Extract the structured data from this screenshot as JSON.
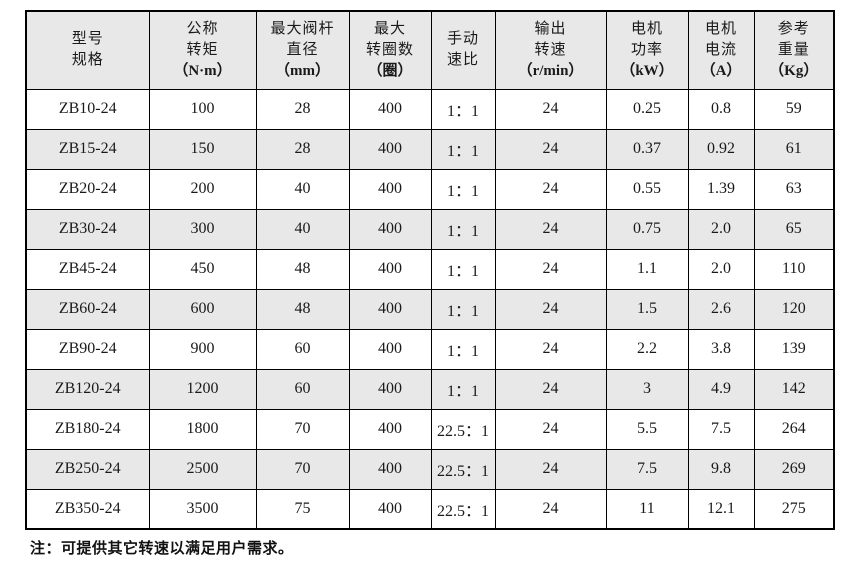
{
  "colors": {
    "page_bg": "#ffffff",
    "header_bg": "#e8e8e8",
    "stripe_bg": "#e8e8e8",
    "row_bg": "#ffffff",
    "border": "#000000"
  },
  "table": {
    "headers": [
      {
        "line1": "型号",
        "line2": "规格",
        "unit": ""
      },
      {
        "line1": "公称",
        "line2": "转矩",
        "unit": "（N·m）"
      },
      {
        "line1": "最大阀杆",
        "line2": "直径",
        "unit": "（mm）"
      },
      {
        "line1": "最大",
        "line2": "转圈数",
        "unit": "（圈）"
      },
      {
        "line1": "手动",
        "line2": "速比",
        "unit": ""
      },
      {
        "line1": "输出",
        "line2": "转速",
        "unit": "（r/min）"
      },
      {
        "line1": "电机",
        "line2": "功率",
        "unit": "（kW）"
      },
      {
        "line1": "电机",
        "line2": "电流",
        "unit": "（A）"
      },
      {
        "line1": "参考",
        "line2": "重量",
        "unit": "（Kg）"
      }
    ],
    "rows": [
      [
        "ZB10-24",
        "100",
        "28",
        "400",
        "1：1",
        "24",
        "0.25",
        "0.8",
        "59"
      ],
      [
        "ZB15-24",
        "150",
        "28",
        "400",
        "1：1",
        "24",
        "0.37",
        "0.92",
        "61"
      ],
      [
        "ZB20-24",
        "200",
        "40",
        "400",
        "1：1",
        "24",
        "0.55",
        "1.39",
        "63"
      ],
      [
        "ZB30-24",
        "300",
        "40",
        "400",
        "1：1",
        "24",
        "0.75",
        "2.0",
        "65"
      ],
      [
        "ZB45-24",
        "450",
        "48",
        "400",
        "1：1",
        "24",
        "1.1",
        "2.0",
        "110"
      ],
      [
        "ZB60-24",
        "600",
        "48",
        "400",
        "1：1",
        "24",
        "1.5",
        "2.6",
        "120"
      ],
      [
        "ZB90-24",
        "900",
        "60",
        "400",
        "1：1",
        "24",
        "2.2",
        "3.8",
        "139"
      ],
      [
        "ZB120-24",
        "1200",
        "60",
        "400",
        "1：1",
        "24",
        "3",
        "4.9",
        "142"
      ],
      [
        "ZB180-24",
        "1800",
        "70",
        "400",
        "22.5：1",
        "24",
        "5.5",
        "7.5",
        "264"
      ],
      [
        "ZB250-24",
        "2500",
        "70",
        "400",
        "22.5：1",
        "24",
        "7.5",
        "9.8",
        "269"
      ],
      [
        "ZB350-24",
        "3500",
        "75",
        "400",
        "22.5：1",
        "24",
        "11",
        "12.1",
        "275"
      ]
    ]
  },
  "note": "注：可提供其它转速以满足用户需求。"
}
